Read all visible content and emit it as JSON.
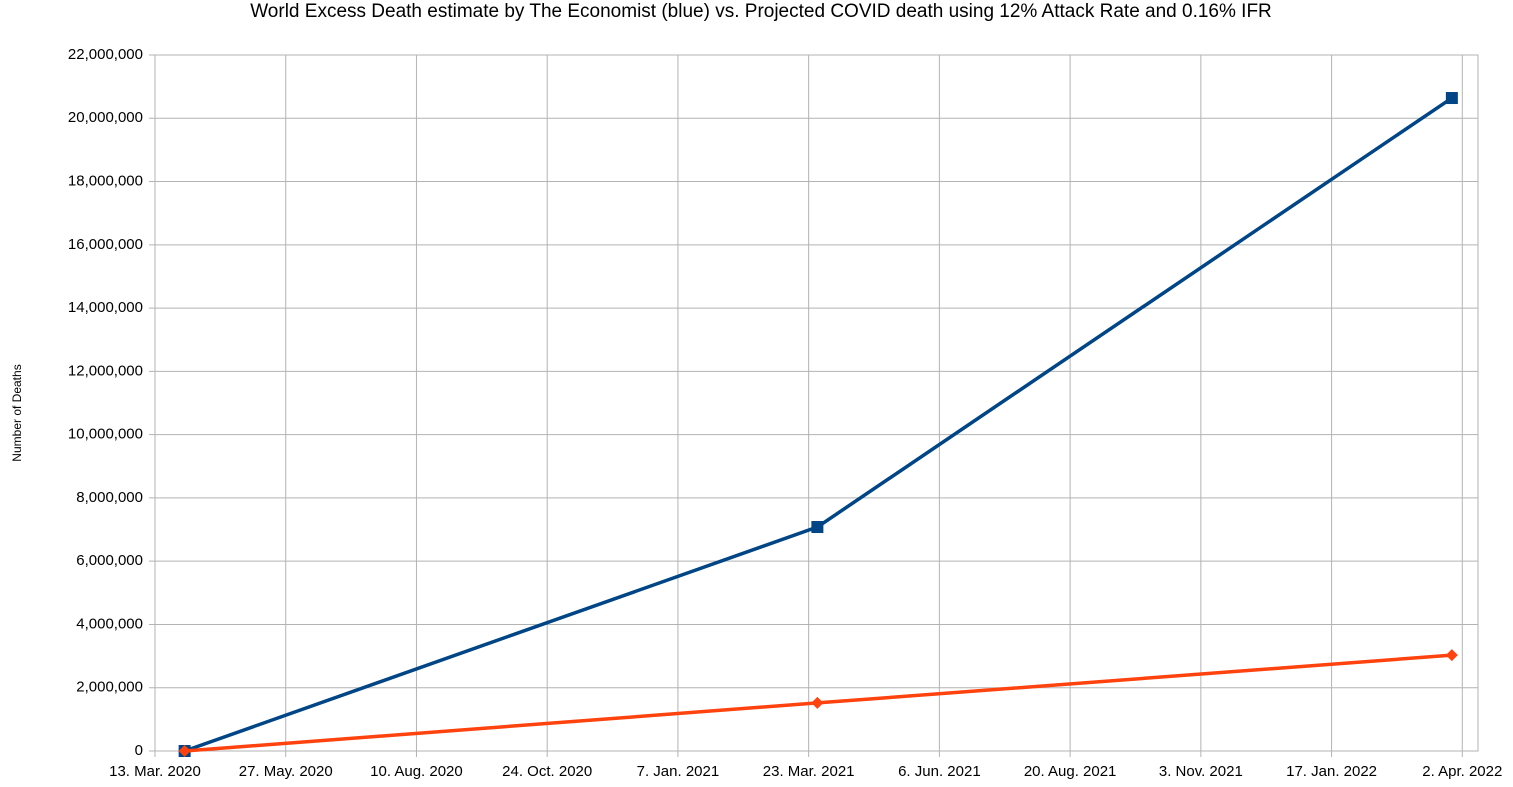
{
  "chart_data": {
    "type": "line",
    "title": "World Excess Death estimate by The Economist (blue) vs. Projected COVID death using 12% Attack Rate and 0.16% IFR",
    "y_label": "Number of Deaths",
    "x": [
      "2020-03-30",
      "2021-03-28",
      "2022-03-27"
    ],
    "series": [
      {
        "color": "#004586",
        "marker": "square",
        "values": [
          0,
          7080000,
          20640000
        ]
      },
      {
        "color": "#ff420e",
        "marker": "diamond",
        "values": [
          0,
          1520000,
          3030000
        ]
      }
    ],
    "xlim": [
      "2020-03-13",
      "2022-04-11"
    ],
    "xticks": [
      {
        "value": "2020-03-13",
        "label": "13. Mar. 2020"
      },
      {
        "value": "2020-05-27",
        "label": "27. May. 2020"
      },
      {
        "value": "2020-08-10",
        "label": "10. Aug. 2020"
      },
      {
        "value": "2020-10-24",
        "label": "24. Oct. 2020"
      },
      {
        "value": "2021-01-07",
        "label": "7. Jan. 2021"
      },
      {
        "value": "2021-03-23",
        "label": "23. Mar. 2021"
      },
      {
        "value": "2021-06-06",
        "label": "6. Jun. 2021"
      },
      {
        "value": "2021-08-20",
        "label": "20. Aug. 2021"
      },
      {
        "value": "2021-11-03",
        "label": "3. Nov. 2021"
      },
      {
        "value": "2022-01-17",
        "label": "17. Jan. 2022"
      },
      {
        "value": "2022-04-02",
        "label": "2. Apr. 2022"
      }
    ],
    "ylim": [
      0,
      22000000
    ],
    "yticks": [
      0,
      {
        "value": 2000000,
        "label": "2,000,000"
      },
      {
        "value": 4000000,
        "label": "4,000,000"
      },
      {
        "value": 6000000,
        "label": "6,000,000"
      },
      {
        "value": 8000000,
        "label": "8,000,000"
      },
      {
        "value": 10000000,
        "label": "10,000,000"
      },
      {
        "value": 12000000,
        "label": "12,000,000"
      },
      {
        "value": 14000000,
        "label": "14,000,000"
      },
      {
        "value": 16000000,
        "label": "16,000,000"
      },
      {
        "value": 18000000,
        "label": "18,000,000"
      },
      {
        "value": 20000000,
        "label": "20,000,000"
      },
      {
        "value": 22000000,
        "label": "22,000,000"
      }
    ],
    "grid": true
  }
}
